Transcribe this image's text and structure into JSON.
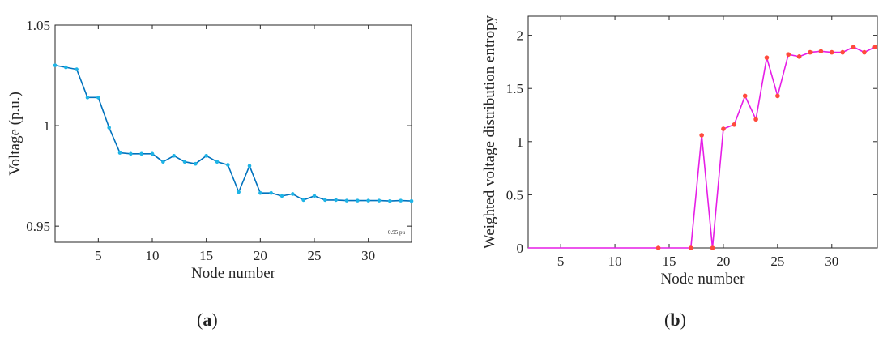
{
  "captions": {
    "a_open": "(",
    "a_letter": "a",
    "a_close": ")",
    "b_open": "(",
    "b_letter": "b",
    "b_close": ")"
  },
  "chart_data": [
    {
      "type": "line",
      "xlabel": "Node number",
      "ylabel": "Voltage (p.u.)",
      "xlim": [
        1,
        34
      ],
      "ylim": [
        0.942,
        1.05
      ],
      "xticks": [
        5,
        10,
        15,
        20,
        25,
        30
      ],
      "yticks": [
        0.95,
        1,
        1.05
      ],
      "ytick_labels": [
        "0.95",
        "1",
        "1.05"
      ],
      "annotation": "0.95 pu",
      "grid": false,
      "line_color": "#0072BD",
      "marker_color": "#1EB4E6",
      "series": [
        {
          "x": [
            1,
            2,
            3,
            4,
            5,
            6,
            7,
            8,
            9,
            10,
            11,
            12,
            13,
            14,
            15,
            16,
            17,
            18,
            19,
            20,
            21,
            22,
            23,
            24,
            25,
            26,
            27,
            28,
            29,
            30,
            31,
            32,
            33,
            34
          ],
          "y": [
            1.03,
            1.029,
            1.028,
            1.014,
            1.014,
            0.999,
            0.9865,
            0.986,
            0.986,
            0.986,
            0.982,
            0.985,
            0.982,
            0.981,
            0.985,
            0.982,
            0.9805,
            0.967,
            0.98,
            0.9665,
            0.9665,
            0.965,
            0.966,
            0.963,
            0.965,
            0.963,
            0.963,
            0.9627,
            0.9627,
            0.9627,
            0.9627,
            0.9625,
            0.9627,
            0.9625
          ]
        }
      ]
    },
    {
      "type": "line",
      "xlabel": "Node number",
      "ylabel": "Weighted voltage distribution entropy",
      "xlim": [
        2,
        34.2
      ],
      "ylim": [
        0,
        2.18
      ],
      "xticks": [
        5,
        10,
        15,
        20,
        25,
        30
      ],
      "yticks": [
        0,
        0.5,
        1,
        1.5,
        2
      ],
      "ytick_labels": [
        "0",
        "0.5",
        "1",
        "1.5",
        "2"
      ],
      "grid": false,
      "line_color": "#E61EE6",
      "marker_color": "#FF4A3C",
      "series": [
        {
          "x": [
            2,
            3,
            4,
            5,
            6,
            7,
            8,
            9,
            10,
            11,
            12,
            13,
            14,
            15,
            16,
            17,
            18,
            19,
            20,
            21,
            22,
            23,
            24,
            25,
            26,
            27,
            28,
            29,
            30,
            31,
            32,
            33,
            34
          ],
          "y": [
            0,
            0,
            0,
            0,
            0,
            0,
            0,
            0,
            0,
            0,
            0,
            0,
            0,
            0,
            0,
            0,
            1.06,
            0,
            1.12,
            1.16,
            1.43,
            1.21,
            1.79,
            1.43,
            1.82,
            1.8,
            1.84,
            1.85,
            1.84,
            1.84,
            1.89,
            1.84,
            1.89
          ],
          "marked_x": [
            14,
            17,
            18,
            19,
            20,
            21,
            22,
            23,
            24,
            25,
            26,
            27,
            28,
            29,
            30,
            31,
            32,
            33,
            34
          ]
        }
      ]
    }
  ]
}
